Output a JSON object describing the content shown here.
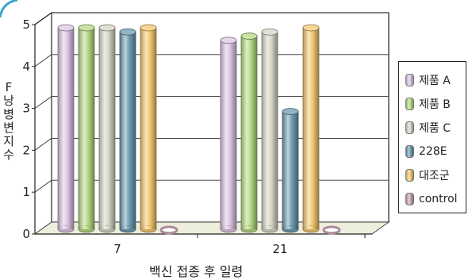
{
  "chart_data": {
    "type": "bar",
    "title": "",
    "xlabel": "백신 접종 후 일령",
    "ylabel": "F낭 병변지수",
    "ylim": [
      0,
      5
    ],
    "yticks": [
      "0",
      "1",
      "2",
      "3",
      "4",
      "5"
    ],
    "categories": [
      "7",
      "21"
    ],
    "grid": true,
    "legend_position": "right",
    "series": [
      {
        "name": "제품 A",
        "color": "#dcc5e4",
        "values": [
          5.0,
          4.7
        ]
      },
      {
        "name": "제품 B",
        "color": "#b6da85",
        "values": [
          5.0,
          4.8
        ]
      },
      {
        "name": "제품 C",
        "color": "#d6d6c8",
        "values": [
          5.0,
          4.9
        ]
      },
      {
        "name": "228E",
        "color": "#6e9db2",
        "values": [
          4.9,
          3.0
        ]
      },
      {
        "name": "대조군",
        "color": "#f3c971",
        "values": [
          5.0,
          5.0
        ]
      },
      {
        "name": "control",
        "color": "#c9a3b5",
        "values": [
          0,
          0
        ]
      }
    ]
  }
}
